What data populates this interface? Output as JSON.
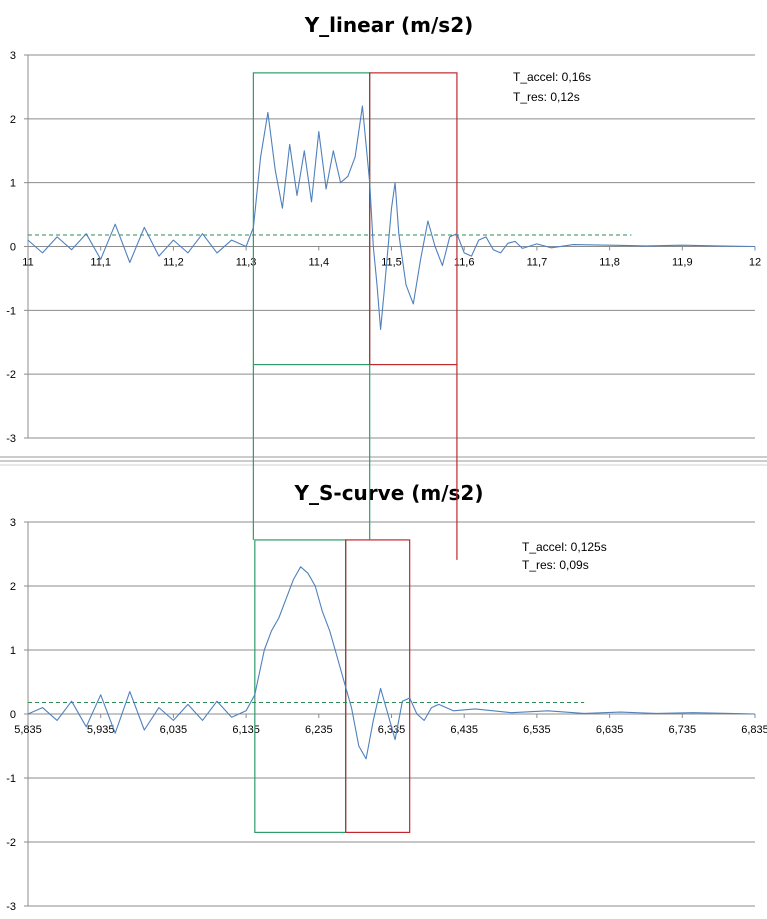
{
  "chart_data": [
    {
      "type": "line",
      "title": "Y_linear (m/s2)",
      "xlabel": "",
      "ylabel": "",
      "xlim": [
        11,
        12
      ],
      "ylim": [
        -3,
        3
      ],
      "x_ticks": [
        "11",
        "11,1",
        "11,2",
        "11,3",
        "11,4",
        "11,5",
        "11,6",
        "11,7",
        "11,8",
        "11,9",
        "12"
      ],
      "y_ticks": [
        "3",
        "2",
        "1",
        "0",
        "-1",
        "-2",
        "-3"
      ],
      "grid": true,
      "annotations": [
        "T_accel: 0,16s",
        "T_res: 0,12s"
      ],
      "threshold_line": {
        "y": 0.18,
        "x_start": 11.0,
        "x_end": 11.83,
        "style": "dashed",
        "color": "#2e8b57"
      },
      "accel_box": {
        "x_start": 11.31,
        "x_end": 11.47,
        "y_top": 2.72,
        "y_bottom": -1.85,
        "color": "#2e9d6a"
      },
      "res_box": {
        "x_start": 11.47,
        "x_end": 11.59,
        "y_top": 2.72,
        "y_bottom": -1.85,
        "color": "#c0282d"
      },
      "series": [
        {
          "color": "#4f81bd",
          "x": [
            11.0,
            11.02,
            11.04,
            11.06,
            11.08,
            11.1,
            11.12,
            11.14,
            11.16,
            11.18,
            11.2,
            11.22,
            11.24,
            11.26,
            11.28,
            11.3,
            11.31,
            11.32,
            11.33,
            11.34,
            11.35,
            11.36,
            11.37,
            11.38,
            11.39,
            11.4,
            11.41,
            11.42,
            11.43,
            11.44,
            11.45,
            11.46,
            11.47,
            11.475,
            11.48,
            11.485,
            11.49,
            11.5,
            11.505,
            11.51,
            11.52,
            11.53,
            11.54,
            11.55,
            11.56,
            11.57,
            11.58,
            11.59,
            11.6,
            11.61,
            11.62,
            11.63,
            11.64,
            11.65,
            11.66,
            11.67,
            11.68,
            11.7,
            11.72,
            11.75,
            11.8,
            11.85,
            11.9,
            11.95,
            12.0
          ],
          "y": [
            0.1,
            -0.1,
            0.15,
            -0.05,
            0.2,
            -0.2,
            0.35,
            -0.25,
            0.3,
            -0.15,
            0.1,
            -0.1,
            0.2,
            -0.1,
            0.1,
            0.0,
            0.3,
            1.4,
            2.1,
            1.2,
            0.6,
            1.6,
            0.8,
            1.5,
            0.7,
            1.8,
            0.9,
            1.5,
            1.0,
            1.1,
            1.4,
            2.2,
            1.0,
            0.0,
            -0.6,
            -1.3,
            -0.7,
            0.6,
            1.0,
            0.2,
            -0.6,
            -0.9,
            -0.2,
            0.4,
            0.0,
            -0.3,
            0.15,
            0.2,
            -0.1,
            -0.15,
            0.1,
            0.15,
            -0.05,
            -0.1,
            0.05,
            0.08,
            -0.03,
            0.04,
            -0.02,
            0.03,
            0.02,
            0.01,
            0.02,
            0.01,
            0.0
          ]
        }
      ]
    },
    {
      "type": "line",
      "title": "Y_S-curve (m/s2)",
      "xlabel": "",
      "ylabel": "",
      "xlim": [
        5.835,
        6.835
      ],
      "ylim": [
        -3,
        3
      ],
      "x_ticks": [
        "5,835",
        "5,935",
        "6,035",
        "6,135",
        "6,235",
        "6,335",
        "6,435",
        "6,535",
        "6,635",
        "6,735",
        "6,835"
      ],
      "y_ticks": [
        "3",
        "2",
        "1",
        "0",
        "-1",
        "-2",
        "-3"
      ],
      "grid": true,
      "annotations": [
        "T_accel: 0,125s",
        "T_res: 0,09s"
      ],
      "threshold_line": {
        "y": 0.18,
        "x_start": 5.835,
        "x_end": 6.6,
        "style": "dashed",
        "color": "#2e8b57"
      },
      "accel_box": {
        "x_start": 6.147,
        "x_end": 6.272,
        "y_top": 2.72,
        "y_bottom": -1.85,
        "color": "#2e9d6a"
      },
      "res_box": {
        "x_start": 6.272,
        "x_end": 6.36,
        "y_top": 2.72,
        "y_bottom": -1.85,
        "color": "#c0282d"
      },
      "series": [
        {
          "color": "#4f81bd",
          "x": [
            5.835,
            5.855,
            5.875,
            5.895,
            5.915,
            5.935,
            5.955,
            5.975,
            5.995,
            6.015,
            6.035,
            6.055,
            6.075,
            6.095,
            6.115,
            6.135,
            6.147,
            6.16,
            6.17,
            6.18,
            6.19,
            6.2,
            6.21,
            6.22,
            6.23,
            6.24,
            6.25,
            6.26,
            6.27,
            6.28,
            6.29,
            6.3,
            6.31,
            6.32,
            6.33,
            6.34,
            6.35,
            6.36,
            6.37,
            6.38,
            6.39,
            6.4,
            6.42,
            6.45,
            6.5,
            6.55,
            6.6,
            6.65,
            6.7,
            6.75,
            6.8,
            6.835
          ],
          "y": [
            0.0,
            0.1,
            -0.1,
            0.2,
            -0.2,
            0.3,
            -0.3,
            0.35,
            -0.25,
            0.1,
            -0.1,
            0.15,
            -0.1,
            0.2,
            -0.05,
            0.05,
            0.3,
            1.0,
            1.3,
            1.5,
            1.8,
            2.1,
            2.3,
            2.2,
            2.0,
            1.6,
            1.3,
            0.9,
            0.5,
            0.1,
            -0.5,
            -0.7,
            -0.1,
            0.4,
            0.0,
            -0.4,
            0.2,
            0.25,
            0.0,
            -0.1,
            0.1,
            0.15,
            0.05,
            0.08,
            0.02,
            0.05,
            0.01,
            0.03,
            0.01,
            0.02,
            0.01,
            0.0
          ]
        }
      ]
    }
  ]
}
